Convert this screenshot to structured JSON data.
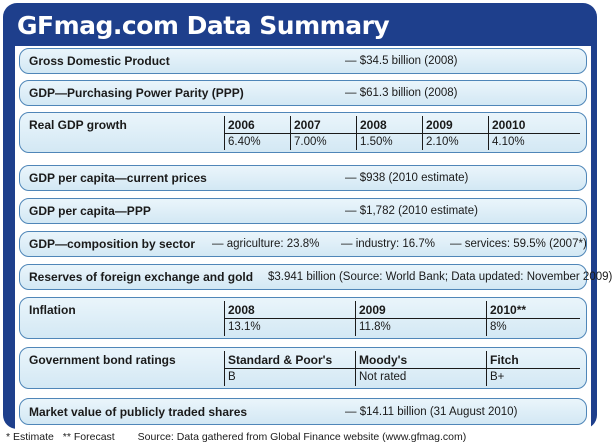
{
  "title": "GFmag.com Data Summary",
  "rows": {
    "gdp": {
      "label": "Gross Domestic Product",
      "value": "— $34.5 billion (2008)"
    },
    "ppp": {
      "label": "GDP—Purchasing Power Parity (PPP)",
      "value": "— $61.3 billion (2008)"
    },
    "growth": {
      "label": "Real GDP growth",
      "years": [
        "2006",
        "2007",
        "2008",
        "2009",
        "20010"
      ],
      "values": [
        "6.40%",
        "7.00%",
        "1.50%",
        "2.10%",
        "4.10%"
      ]
    },
    "per_capita_current": {
      "label": "GDP per capita—current prices",
      "value": "— $938 (2010 estimate)"
    },
    "per_capita_ppp": {
      "label": "GDP per capita—PPP",
      "value": "— $1,782 (2010 estimate)"
    },
    "composition": {
      "label": "GDP—composition by sector",
      "agriculture": "— agriculture: 23.8%",
      "industry": "— industry: 16.7%",
      "services": "— services: 59.5% (2007*)"
    },
    "reserves": {
      "label": "Reserves of foreign exchange and gold",
      "value": "$3.941 billion (Source: World Bank; Data updated: November 2009)"
    },
    "inflation": {
      "label": "Inflation",
      "years": [
        "2008",
        "2009",
        "2010**"
      ],
      "values": [
        "13.1%",
        "11.8%",
        "8%"
      ]
    },
    "bonds": {
      "label": "Government bond ratings",
      "agencies": [
        "Standard & Poor's",
        "Moody's",
        "Fitch"
      ],
      "ratings": [
        "B",
        "Not rated",
        "B+"
      ]
    },
    "market": {
      "label": "Market value of publicly traded shares",
      "value": "— $14.11 billion (31 August 2010)"
    }
  },
  "footer": {
    "estimate_note": "* Estimate",
    "forecast_note": "** Forecast",
    "source": "Source: Data gathered from Global Finance website (www.gfmag.com)"
  }
}
